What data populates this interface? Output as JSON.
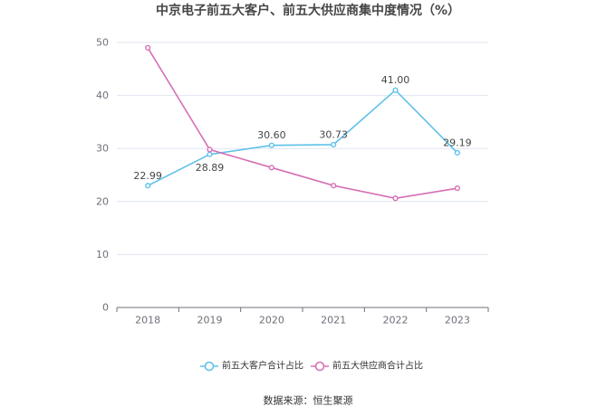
{
  "source": "数据来源：恒生聚源",
  "colors": {
    "axis": "#6e7079",
    "grid": "#e0e6f1",
    "text": "#333333",
    "title": "#464646"
  },
  "chart_data": {
    "type": "line",
    "title": "中京电子前五大客户、前五大供应商集中度情况（%）",
    "xlabel": "",
    "ylabel": "",
    "categories": [
      "2018",
      "2019",
      "2020",
      "2021",
      "2022",
      "2023"
    ],
    "series": [
      {
        "name": "前五大客户合计占比",
        "values": [
          22.99,
          28.89,
          30.6,
          30.73,
          41.0,
          29.19
        ],
        "data_labels": true,
        "color": "#5ec1ea"
      },
      {
        "name": "前五大供应商合计占比",
        "values": [
          49.0,
          29.8,
          26.4,
          23.0,
          20.6,
          22.5
        ],
        "data_labels": false,
        "color": "#d66fb6"
      }
    ],
    "ylim": [
      0,
      50
    ],
    "yticks": [
      0,
      10,
      20,
      30,
      40,
      50
    ],
    "grid": true,
    "legend": "bottom-center"
  }
}
